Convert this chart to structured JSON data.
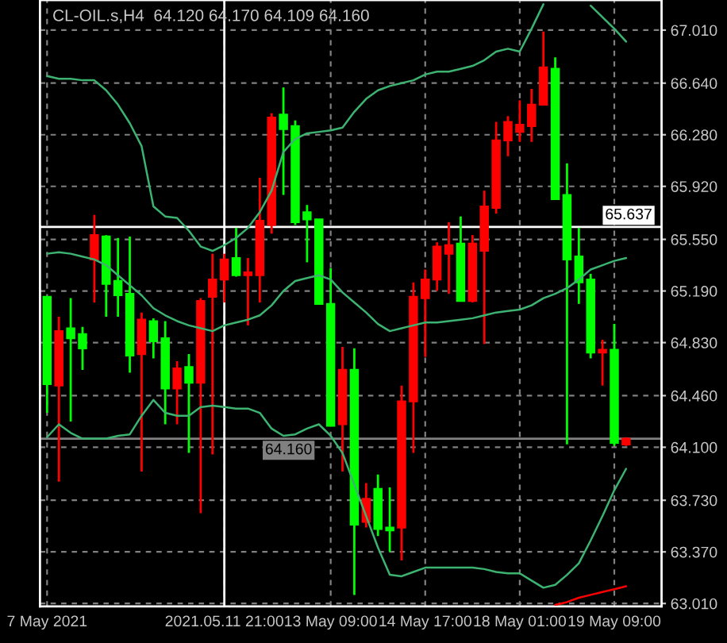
{
  "chart_data": {
    "type": "candlestick",
    "title": "CL-OIL.s,H4  64.120 64.170 64.109 64.160",
    "categories": [
      "7 May 2021",
      null,
      null,
      null,
      null,
      null,
      null,
      null,
      null,
      null,
      null,
      null,
      null,
      null,
      null,
      "2021.05.11 21:00",
      null,
      null,
      null,
      null,
      null,
      null,
      null,
      null,
      "13 May 09:00",
      null,
      null,
      null,
      null,
      null,
      null,
      null,
      "14 May 17:00",
      null,
      null,
      null,
      null,
      null,
      null,
      null,
      "18 May 01:00",
      null,
      null,
      null,
      null,
      null,
      null,
      null,
      "19 May 09:00",
      null
    ],
    "ohlc": [
      [
        65.15,
        65.15,
        64.34,
        64.54
      ],
      [
        64.53,
        65.01,
        63.86,
        64.91
      ],
      [
        64.93,
        65.14,
        64.28,
        64.86
      ],
      [
        64.89,
        64.94,
        64.64,
        64.79
      ],
      [
        65.41,
        65.72,
        65.11,
        65.58
      ],
      [
        65.57,
        65.58,
        65.01,
        65.24
      ],
      [
        65.26,
        65.56,
        65.01,
        65.16
      ],
      [
        65.17,
        65.57,
        64.62,
        64.74
      ],
      [
        64.75,
        65.04,
        63.93,
        64.99
      ],
      [
        64.98,
        65.0,
        64.72,
        64.84
      ],
      [
        64.86,
        64.98,
        64.26,
        64.51
      ],
      [
        64.51,
        64.7,
        64.26,
        64.65
      ],
      [
        64.66,
        64.75,
        64.06,
        64.55
      ],
      [
        64.55,
        65.14,
        63.64,
        65.12
      ],
      [
        65.15,
        65.45,
        64.05,
        65.27
      ],
      [
        65.27,
        65.45,
        65.11,
        65.41
      ],
      [
        65.42,
        65.63,
        65.29,
        65.3
      ],
      [
        65.3,
        65.42,
        64.95,
        65.32
      ],
      [
        65.3,
        65.98,
        65.11,
        65.68
      ],
      [
        65.65,
        66.43,
        65.59,
        66.4
      ],
      [
        66.42,
        66.61,
        65.86,
        66.32
      ],
      [
        66.34,
        66.38,
        65.65,
        65.67
      ],
      [
        65.74,
        65.79,
        65.39,
        65.69
      ],
      [
        65.69,
        65.69,
        65.1,
        65.1
      ],
      [
        65.1,
        65.35,
        64.25,
        64.25
      ],
      [
        64.26,
        64.8,
        63.93,
        64.64
      ],
      [
        64.64,
        64.79,
        63.07,
        63.56
      ],
      [
        63.58,
        63.85,
        63.54,
        63.74
      ],
      [
        63.81,
        63.91,
        63.48,
        63.53
      ],
      [
        63.54,
        63.82,
        63.37,
        63.52
      ],
      [
        63.54,
        64.53,
        63.31,
        64.42
      ],
      [
        64.42,
        65.25,
        64.06,
        65.15
      ],
      [
        65.14,
        65.34,
        64.73,
        65.27
      ],
      [
        65.27,
        65.53,
        65.19,
        65.5
      ],
      [
        65.45,
        65.67,
        65.17,
        65.51
      ],
      [
        65.52,
        65.71,
        65.12,
        65.12
      ],
      [
        65.12,
        65.58,
        65.11,
        65.52
      ],
      [
        65.47,
        65.89,
        64.82,
        65.78
      ],
      [
        65.77,
        66.37,
        65.73,
        66.24
      ],
      [
        66.24,
        66.41,
        66.13,
        66.37
      ],
      [
        66.3,
        66.52,
        66.23,
        66.35
      ],
      [
        66.34,
        66.6,
        66.23,
        66.49
      ],
      [
        66.49,
        67.0,
        66.49,
        66.75
      ],
      [
        66.74,
        66.82,
        65.83,
        65.83
      ],
      [
        65.86,
        66.08,
        64.12,
        65.41
      ],
      [
        65.43,
        65.63,
        65.1,
        65.25
      ],
      [
        65.27,
        65.31,
        64.72,
        64.76
      ],
      [
        64.76,
        64.85,
        64.53,
        64.78
      ],
      [
        64.78,
        64.96,
        64.11,
        64.13
      ],
      [
        64.12,
        64.17,
        64.109,
        64.16
      ]
    ],
    "colors": [
      "#00ff00",
      "#ff0000",
      "#00ff00",
      "#00ff00",
      "#ff0000",
      "#00ff00",
      "#00ff00",
      "#00ff00",
      "#ff0000",
      "#00ff00",
      "#00ff00",
      "#ff0000",
      "#00ff00",
      "#ff0000",
      "#ff0000",
      "#ff0000",
      "#00ff00",
      "#ff0000",
      "#ff0000",
      "#ff0000",
      "#00ff00",
      "#00ff00",
      "#00ff00",
      "#00ff00",
      "#00ff00",
      "#ff0000",
      "#00ff00",
      "#ff0000",
      "#00ff00",
      "#00ff00",
      "#ff0000",
      "#ff0000",
      "#ff0000",
      "#ff0000",
      "#ff0000",
      "#00ff00",
      "#ff0000",
      "#ff0000",
      "#ff0000",
      "#ff0000",
      "#ff0000",
      "#ff0000",
      "#ff0000",
      "#00ff00",
      "#00ff00",
      "#00ff00",
      "#00ff00",
      "#ff0000",
      "#00ff00",
      "#ff0000"
    ],
    "series": [
      {
        "type": "line",
        "color": "#3cb371",
        "values": [
          66.69,
          66.67,
          66.67,
          66.66,
          66.66,
          66.59,
          66.49,
          66.36,
          66.2,
          65.78,
          65.71,
          65.7,
          65.61,
          65.5,
          65.47,
          65.51,
          65.56,
          65.63,
          65.74,
          65.89,
          66.16,
          66.25,
          66.29,
          66.3,
          66.31,
          66.33,
          66.44,
          66.53,
          66.59,
          66.62,
          66.64,
          66.66,
          66.7,
          66.72,
          66.72,
          66.74,
          66.76,
          66.8,
          66.86,
          66.88,
          66.86,
          67.02,
          67.19,
          null,
          null,
          null,
          67.18,
          67.1,
          67.02,
          66.93
        ]
      },
      {
        "type": "line",
        "color": "#3cb371",
        "values": [
          65.45,
          65.46,
          65.45,
          65.43,
          65.41,
          65.37,
          65.3,
          65.23,
          65.16,
          65.07,
          65.02,
          64.98,
          64.95,
          64.93,
          64.91,
          64.95,
          64.97,
          64.99,
          65.02,
          65.09,
          65.19,
          65.26,
          65.28,
          65.3,
          65.27,
          65.18,
          65.11,
          65.04,
          64.96,
          64.91,
          64.93,
          64.95,
          64.97,
          64.97,
          64.98,
          64.99,
          65.0,
          65.02,
          65.04,
          65.05,
          65.06,
          65.09,
          65.14,
          65.17,
          65.21,
          65.27,
          65.34,
          65.37,
          65.4,
          65.42
        ]
      },
      {
        "type": "line",
        "color": "#3cb371",
        "values": [
          64.17,
          64.26,
          64.2,
          64.16,
          64.16,
          64.16,
          64.18,
          64.19,
          64.32,
          64.43,
          64.34,
          64.32,
          64.32,
          64.38,
          64.39,
          64.38,
          64.37,
          64.37,
          64.34,
          64.23,
          64.18,
          64.19,
          64.23,
          64.26,
          64.18,
          64.06,
          63.84,
          63.62,
          63.4,
          63.21,
          63.2,
          63.23,
          63.26,
          63.26,
          63.26,
          63.26,
          63.26,
          63.25,
          63.23,
          63.22,
          63.22,
          63.17,
          63.12,
          63.14,
          63.21,
          63.29,
          63.45,
          63.62,
          63.8,
          63.95
        ]
      },
      {
        "type": "line",
        "color": "#ff0000",
        "values": [
          null,
          null,
          null,
          null,
          null,
          null,
          null,
          null,
          null,
          null,
          null,
          null,
          null,
          null,
          null,
          null,
          null,
          null,
          null,
          null,
          null,
          null,
          null,
          null,
          null,
          null,
          null,
          null,
          null,
          null,
          null,
          null,
          null,
          null,
          null,
          null,
          null,
          null,
          null,
          null,
          null,
          null,
          null,
          63.0,
          63.02,
          63.05,
          63.07,
          63.09,
          63.11,
          63.13
        ]
      }
    ],
    "ylim": [
      62.99,
      67.22
    ],
    "yticks": [
      {
        "value": 67.01,
        "label": "67.010"
      },
      {
        "value": 66.64,
        "label": "66.640"
      },
      {
        "value": 66.28,
        "label": "66.280"
      },
      {
        "value": 65.92,
        "label": "65.920"
      },
      {
        "value": 65.55,
        "label": "65.550"
      },
      {
        "value": 65.19,
        "label": "65.190"
      },
      {
        "value": 64.83,
        "label": "64.830"
      },
      {
        "value": 64.46,
        "label": "64.460"
      },
      {
        "value": 64.1,
        "label": "64.100"
      },
      {
        "value": 63.73,
        "label": "63.730"
      },
      {
        "value": 63.37,
        "label": "63.370"
      },
      {
        "value": 63.01,
        "label": "63.010"
      }
    ],
    "ref_lines": [
      {
        "axis": "y",
        "value": 65.637,
        "label": "65.637",
        "color": "#ffffff"
      },
      {
        "axis": "y",
        "value": 64.16,
        "label": "64.160",
        "color": "#808080"
      },
      {
        "axis": "x",
        "value": "2021.05.11 21:00",
        "color": "#ffffff"
      }
    ],
    "grid": true,
    "line_style": "solid"
  }
}
